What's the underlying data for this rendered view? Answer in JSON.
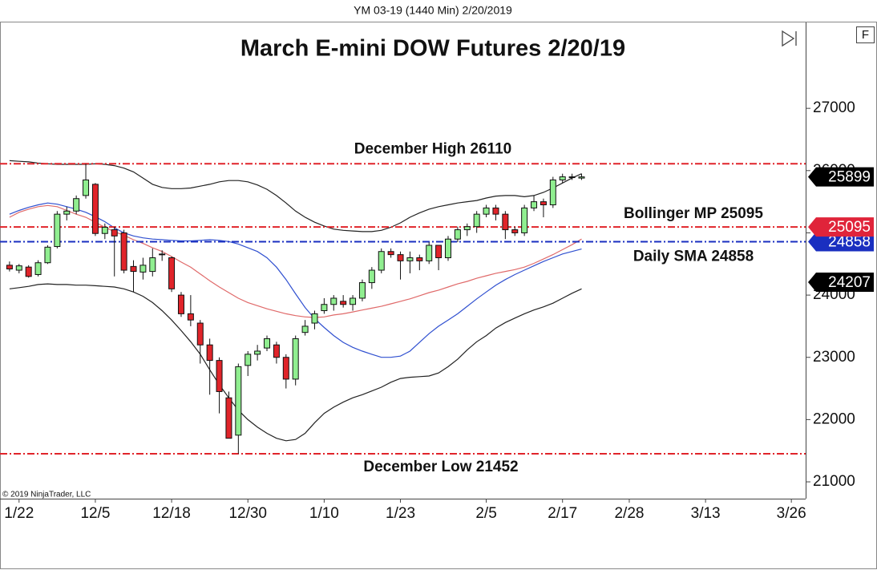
{
  "header": {
    "instrument": "YM 03-19 (1440 Min)  2/20/2019",
    "copyright": "© 2019 NinjaTrader, LLC",
    "button": "F"
  },
  "chart_data": {
    "type": "candlestick",
    "title": "March E-mini DOW Futures 2/20/19",
    "up_color": "#90ee90",
    "down_color": "#e0242a",
    "xlim": [
      -1,
      83.5
    ],
    "xticks": [
      {
        "value": 1,
        "label": "1/22"
      },
      {
        "value": 9,
        "label": "12/5"
      },
      {
        "value": 17,
        "label": "12/18"
      },
      {
        "value": 25,
        "label": "12/30"
      },
      {
        "value": 33,
        "label": "1/10"
      },
      {
        "value": 41,
        "label": "1/23"
      },
      {
        "value": 50,
        "label": "2/5"
      },
      {
        "value": 58,
        "label": "2/17"
      },
      {
        "value": 65,
        "label": "2/28"
      },
      {
        "value": 73,
        "label": "3/13"
      },
      {
        "value": 82,
        "label": "3/26"
      }
    ],
    "ylim": [
      20730,
      28380
    ],
    "yticks": [
      21000,
      22000,
      23000,
      24000,
      25000,
      26000,
      27000
    ],
    "grid": false,
    "open": [
      24480,
      24400,
      24450,
      24330,
      24520,
      24780,
      25300,
      25350,
      25600,
      25780,
      24990,
      25050,
      25000,
      24460,
      24370,
      24380,
      24650,
      24600,
      24000,
      23700,
      23550,
      23200,
      22950,
      22350,
      21750,
      22870,
      23050,
      23150,
      23200,
      23000,
      22650,
      23400,
      23550,
      23750,
      23850,
      23900,
      23850,
      23950,
      24200,
      24400,
      24700,
      24650,
      24550,
      24600,
      24550,
      24800,
      24600,
      24900,
      25050,
      25100,
      25300,
      25400,
      25300,
      25050,
      25000,
      25400,
      25500,
      25450,
      25850,
      25900,
      25880
    ],
    "high": [
      24540,
      24500,
      24480,
      24560,
      24800,
      25350,
      25420,
      25600,
      26110,
      25800,
      25150,
      25100,
      25050,
      24560,
      24600,
      24750,
      24720,
      24620,
      24050,
      24000,
      23600,
      23300,
      23000,
      22450,
      22900,
      23100,
      23200,
      23350,
      23250,
      23050,
      23350,
      23600,
      23750,
      23950,
      24000,
      24000,
      24000,
      24250,
      24450,
      24750,
      24750,
      24700,
      24700,
      24650,
      24850,
      24800,
      24950,
      25100,
      25150,
      25350,
      25450,
      25450,
      25350,
      25100,
      25450,
      25600,
      25550,
      25900,
      25950,
      25950,
      25950
    ],
    "low": [
      24380,
      24350,
      24280,
      24300,
      24500,
      24750,
      25200,
      25300,
      25550,
      24950,
      24900,
      24300,
      24350,
      24050,
      24250,
      24300,
      24550,
      24050,
      23650,
      23500,
      22900,
      22400,
      22100,
      21700,
      21452,
      22700,
      22950,
      23100,
      22900,
      22500,
      22550,
      23350,
      23450,
      23700,
      23750,
      23800,
      23750,
      23900,
      24100,
      24350,
      24600,
      24250,
      24350,
      24400,
      24500,
      24400,
      24550,
      24850,
      24950,
      25000,
      25250,
      25200,
      24900,
      24950,
      24950,
      25350,
      25250,
      25400,
      25800,
      25850,
      25850
    ],
    "close": [
      24420,
      24470,
      24300,
      24520,
      24770,
      25300,
      25350,
      25550,
      25850,
      24990,
      25090,
      24950,
      24400,
      24380,
      24480,
      24600,
      24660,
      24100,
      23700,
      23600,
      23200,
      22950,
      22450,
      21700,
      22850,
      23050,
      23100,
      23300,
      23000,
      22650,
      23300,
      23500,
      23700,
      23850,
      23950,
      23850,
      23950,
      24200,
      24400,
      24700,
      24650,
      24550,
      24600,
      24550,
      24800,
      24600,
      24900,
      25050,
      25100,
      25300,
      25400,
      25300,
      25050,
      25000,
      25400,
      25500,
      25450,
      25850,
      25900,
      25900,
      25899
    ],
    "series": [
      {
        "color": "#222222",
        "values": [
          26160,
          26150,
          26140,
          26120,
          26110,
          26100,
          26100,
          26100,
          26100,
          26110,
          26100,
          26080,
          26040,
          25980,
          25880,
          25780,
          25730,
          25710,
          25710,
          25720,
          25750,
          25780,
          25820,
          25840,
          25840,
          25820,
          25770,
          25700,
          25600,
          25480,
          25350,
          25250,
          25170,
          25110,
          25060,
          25040,
          25030,
          25020,
          25020,
          25040,
          25090,
          25160,
          25250,
          25320,
          25380,
          25420,
          25450,
          25480,
          25500,
          25520,
          25560,
          25590,
          25600,
          25600,
          25580,
          25600,
          25650,
          25720,
          25800,
          25880,
          25950
        ]
      },
      {
        "color": "#e06a6a",
        "values": [
          25250,
          25330,
          25380,
          25420,
          25440,
          25420,
          25360,
          25300,
          25250,
          25170,
          25090,
          25020,
          24960,
          24890,
          24830,
          24760,
          24700,
          24620,
          24530,
          24450,
          24340,
          24230,
          24130,
          24040,
          23950,
          23880,
          23830,
          23780,
          23740,
          23700,
          23670,
          23650,
          23640,
          23650,
          23680,
          23700,
          23730,
          23760,
          23790,
          23820,
          23860,
          23900,
          23940,
          23990,
          24040,
          24080,
          24130,
          24180,
          24220,
          24270,
          24310,
          24350,
          24380,
          24410,
          24450,
          24510,
          24580,
          24650,
          24730,
          24810,
          24900
        ]
      },
      {
        "color": "#222222",
        "values": [
          24100,
          24120,
          24140,
          24170,
          24180,
          24170,
          24170,
          24160,
          24160,
          24150,
          24140,
          24130,
          24100,
          24050,
          23980,
          23880,
          23750,
          23600,
          23430,
          23250,
          23050,
          22800,
          22560,
          22350,
          22150,
          22000,
          21880,
          21780,
          21700,
          21660,
          21680,
          21780,
          21950,
          22100,
          22200,
          22280,
          22350,
          22400,
          22460,
          22520,
          22600,
          22660,
          22680,
          22690,
          22700,
          22750,
          22850,
          22970,
          23120,
          23250,
          23350,
          23470,
          23560,
          23630,
          23700,
          23760,
          23810,
          23870,
          23950,
          24030,
          24100
        ]
      },
      {
        "color": "#3050d0",
        "values": [
          25300,
          25360,
          25410,
          25450,
          25480,
          25460,
          25420,
          25380,
          25330,
          25260,
          25180,
          25080,
          25000,
          24950,
          24920,
          24900,
          24890,
          24880,
          24870,
          24870,
          24880,
          24890,
          24880,
          24860,
          24820,
          24760,
          24700,
          24600,
          24450,
          24250,
          24020,
          23800,
          23620,
          23480,
          23350,
          23240,
          23160,
          23100,
          23050,
          23000,
          23000,
          23020,
          23100,
          23240,
          23380,
          23500,
          23600,
          23700,
          23820,
          23940,
          24050,
          24160,
          24250,
          24330,
          24400,
          24470,
          24540,
          24600,
          24660,
          24700,
          24740
        ]
      }
    ],
    "reference_lines": [
      {
        "label": "December High 26110",
        "value": 26110,
        "color": "#e0242a"
      },
      {
        "label": "Bollinger MP 25095",
        "value": 25095,
        "color": "#e0242a"
      },
      {
        "label": "Daily SMA 24858",
        "value": 24858,
        "color": "#1a2fc0"
      },
      {
        "label": "December Low 21452",
        "value": 21452,
        "color": "#e0242a"
      }
    ],
    "price_tags": [
      {
        "value": 25899,
        "color": "#000000"
      },
      {
        "value": 24207,
        "color": "#000000"
      },
      {
        "value": 24858,
        "color": "#1a2fc0"
      },
      {
        "value": 25095,
        "color": "#e0243a"
      }
    ]
  }
}
